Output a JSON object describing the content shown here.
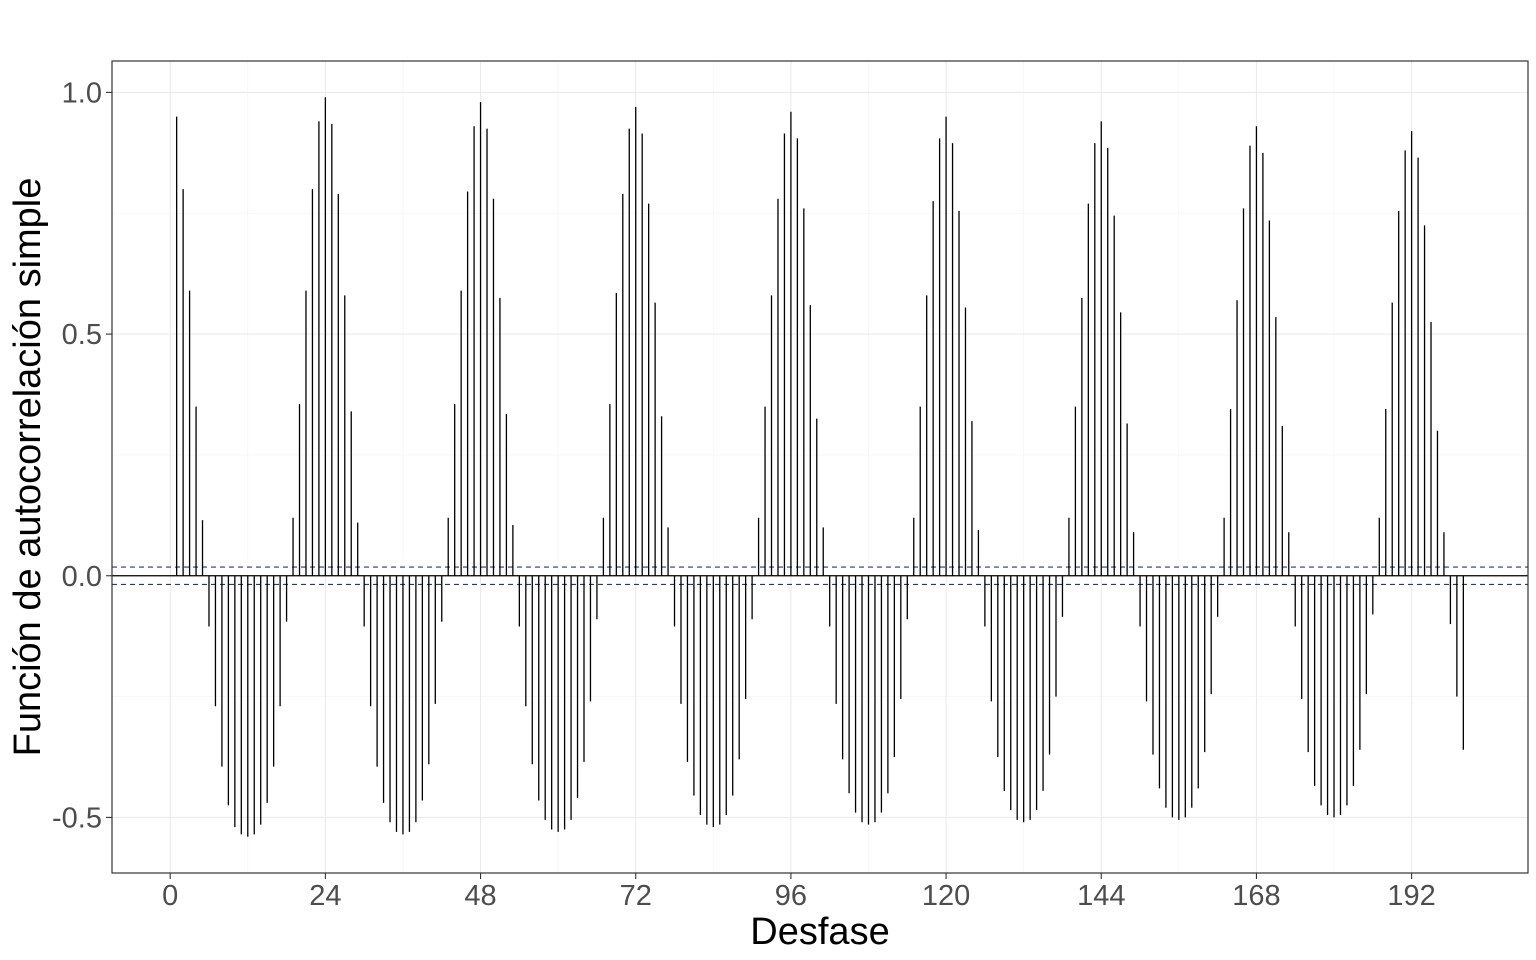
{
  "chart_data": {
    "type": "bar",
    "title": "",
    "xlabel": "Desfase",
    "ylabel": "Función de autocorrelación simple",
    "xlim": [
      -9,
      210
    ],
    "ylim": [
      -0.615,
      1.065
    ],
    "x_ticks": [
      0,
      24,
      48,
      72,
      96,
      120,
      144,
      168,
      192
    ],
    "y_ticks": [
      -0.5,
      0.0,
      0.5,
      1.0
    ],
    "y_tick_labels": [
      "-0.5",
      "0.0",
      "0.5",
      "1.0"
    ],
    "grid": true,
    "legend": "none",
    "confidence_bound": 0.018,
    "conf_color": "#1f3a8a",
    "spike_color": "#000000",
    "lags": [
      1,
      2,
      3,
      4,
      5,
      6,
      7,
      8,
      9,
      10,
      11,
      12,
      13,
      14,
      15,
      16,
      17,
      18,
      19,
      20,
      21,
      22,
      23,
      24,
      25,
      26,
      27,
      28,
      29,
      30,
      31,
      32,
      33,
      34,
      35,
      36,
      37,
      38,
      39,
      40,
      41,
      42,
      43,
      44,
      45,
      46,
      47,
      48,
      49,
      50,
      51,
      52,
      53,
      54,
      55,
      56,
      57,
      58,
      59,
      60,
      61,
      62,
      63,
      64,
      65,
      66,
      67,
      68,
      69,
      70,
      71,
      72,
      73,
      74,
      75,
      76,
      77,
      78,
      79,
      80,
      81,
      82,
      83,
      84,
      85,
      86,
      87,
      88,
      89,
      90,
      91,
      92,
      93,
      94,
      95,
      96,
      97,
      98,
      99,
      100,
      101,
      102,
      103,
      104,
      105,
      106,
      107,
      108,
      109,
      110,
      111,
      112,
      113,
      114,
      115,
      116,
      117,
      118,
      119,
      120,
      121,
      122,
      123,
      124,
      125,
      126,
      127,
      128,
      129,
      130,
      131,
      132,
      133,
      134,
      135,
      136,
      137,
      138,
      139,
      140,
      141,
      142,
      143,
      144,
      145,
      146,
      147,
      148,
      149,
      150,
      151,
      152,
      153,
      154,
      155,
      156,
      157,
      158,
      159,
      160,
      161,
      162,
      163,
      164,
      165,
      166,
      167,
      168,
      169,
      170,
      171,
      172,
      173,
      174,
      175,
      176,
      177,
      178,
      179,
      180,
      181,
      182,
      183,
      184,
      185,
      186,
      187,
      188,
      189,
      190,
      191,
      192,
      193,
      194,
      195,
      196,
      197,
      198,
      199,
      200
    ],
    "values": [
      0.95,
      0.8,
      0.59,
      0.35,
      0.115,
      -0.105,
      -0.27,
      -0.395,
      -0.475,
      -0.52,
      -0.535,
      -0.54,
      -0.535,
      -0.515,
      -0.47,
      -0.395,
      -0.27,
      -0.095,
      0.12,
      0.355,
      0.59,
      0.8,
      0.94,
      0.99,
      0.935,
      0.79,
      0.58,
      0.34,
      0.11,
      -0.105,
      -0.27,
      -0.395,
      -0.47,
      -0.51,
      -0.53,
      -0.535,
      -0.53,
      -0.51,
      -0.465,
      -0.39,
      -0.265,
      -0.095,
      0.12,
      0.355,
      0.59,
      0.795,
      0.93,
      0.98,
      0.925,
      0.78,
      0.575,
      0.335,
      0.105,
      -0.105,
      -0.27,
      -0.39,
      -0.465,
      -0.505,
      -0.525,
      -0.53,
      -0.525,
      -0.505,
      -0.46,
      -0.385,
      -0.26,
      -0.09,
      0.12,
      0.355,
      0.585,
      0.79,
      0.925,
      0.97,
      0.915,
      0.77,
      0.565,
      0.33,
      0.1,
      -0.105,
      -0.265,
      -0.385,
      -0.455,
      -0.495,
      -0.515,
      -0.52,
      -0.515,
      -0.495,
      -0.455,
      -0.38,
      -0.255,
      -0.09,
      0.12,
      0.35,
      0.58,
      0.78,
      0.915,
      0.96,
      0.905,
      0.76,
      0.56,
      0.325,
      0.1,
      -0.105,
      -0.265,
      -0.38,
      -0.45,
      -0.49,
      -0.51,
      -0.515,
      -0.51,
      -0.49,
      -0.45,
      -0.375,
      -0.255,
      -0.09,
      0.12,
      0.35,
      0.58,
      0.775,
      0.905,
      0.95,
      0.895,
      0.755,
      0.555,
      0.32,
      0.095,
      -0.105,
      -0.26,
      -0.375,
      -0.445,
      -0.485,
      -0.505,
      -0.51,
      -0.505,
      -0.485,
      -0.445,
      -0.37,
      -0.25,
      -0.085,
      0.12,
      0.35,
      0.575,
      0.77,
      0.895,
      0.94,
      0.885,
      0.745,
      0.545,
      0.315,
      0.09,
      -0.105,
      -0.26,
      -0.37,
      -0.44,
      -0.48,
      -0.5,
      -0.505,
      -0.5,
      -0.48,
      -0.44,
      -0.365,
      -0.245,
      -0.085,
      0.12,
      0.345,
      0.57,
      0.76,
      0.89,
      0.93,
      0.875,
      0.735,
      0.535,
      0.31,
      0.09,
      -0.105,
      -0.255,
      -0.365,
      -0.435,
      -0.475,
      -0.495,
      -0.5,
      -0.495,
      -0.475,
      -0.435,
      -0.36,
      -0.245,
      -0.08,
      0.12,
      0.345,
      0.565,
      0.755,
      0.88,
      0.92,
      0.865,
      0.725,
      0.525,
      0.3,
      0.09,
      -0.1,
      -0.25,
      -0.36
    ]
  }
}
